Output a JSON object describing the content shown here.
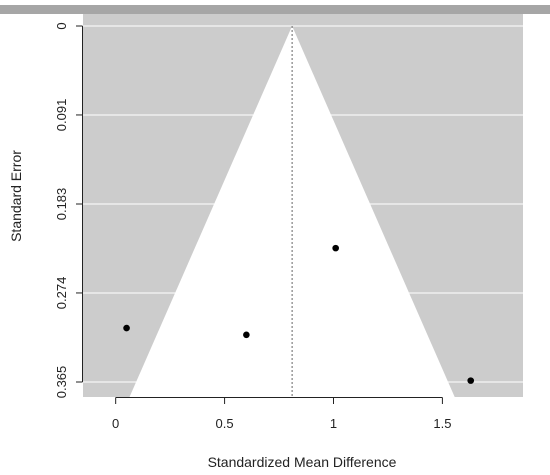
{
  "chart_data": {
    "type": "scatter",
    "plot_kind": "funnel plot",
    "title": "",
    "xlabel": "Standardized Mean Difference",
    "ylabel": "Standard Error",
    "xlim": [
      -0.15,
      1.87
    ],
    "ylim": [
      0.0,
      0.3654
    ],
    "y_reversed": true,
    "x_ticks": [
      {
        "value": 0,
        "label": "0"
      },
      {
        "value": 0.5,
        "label": "0.5"
      },
      {
        "value": 1,
        "label": "1"
      },
      {
        "value": 1.5,
        "label": "1.5"
      }
    ],
    "y_ticks": [
      {
        "value": 0,
        "label": "0"
      },
      {
        "value": 0.0913,
        "label": "0.091"
      },
      {
        "value": 0.1827,
        "label": "0.183"
      },
      {
        "value": 0.274,
        "label": "0.274"
      },
      {
        "value": 0.3654,
        "label": "0.365"
      }
    ],
    "grid": true,
    "pooled_estimate": 0.81,
    "funnel_multiplier": 1.96,
    "points": [
      {
        "x": 0.05,
        "y": 0.31
      },
      {
        "x": 0.6,
        "y": 0.317
      },
      {
        "x": 1.01,
        "y": 0.228
      },
      {
        "x": 1.63,
        "y": 0.364
      }
    ],
    "colors": {
      "panel_background": "#cccccc",
      "funnel_fill": "#ffffff",
      "grid_line": "#ffffff",
      "points": "#000000",
      "top_bar": "#a6a6a6"
    }
  }
}
